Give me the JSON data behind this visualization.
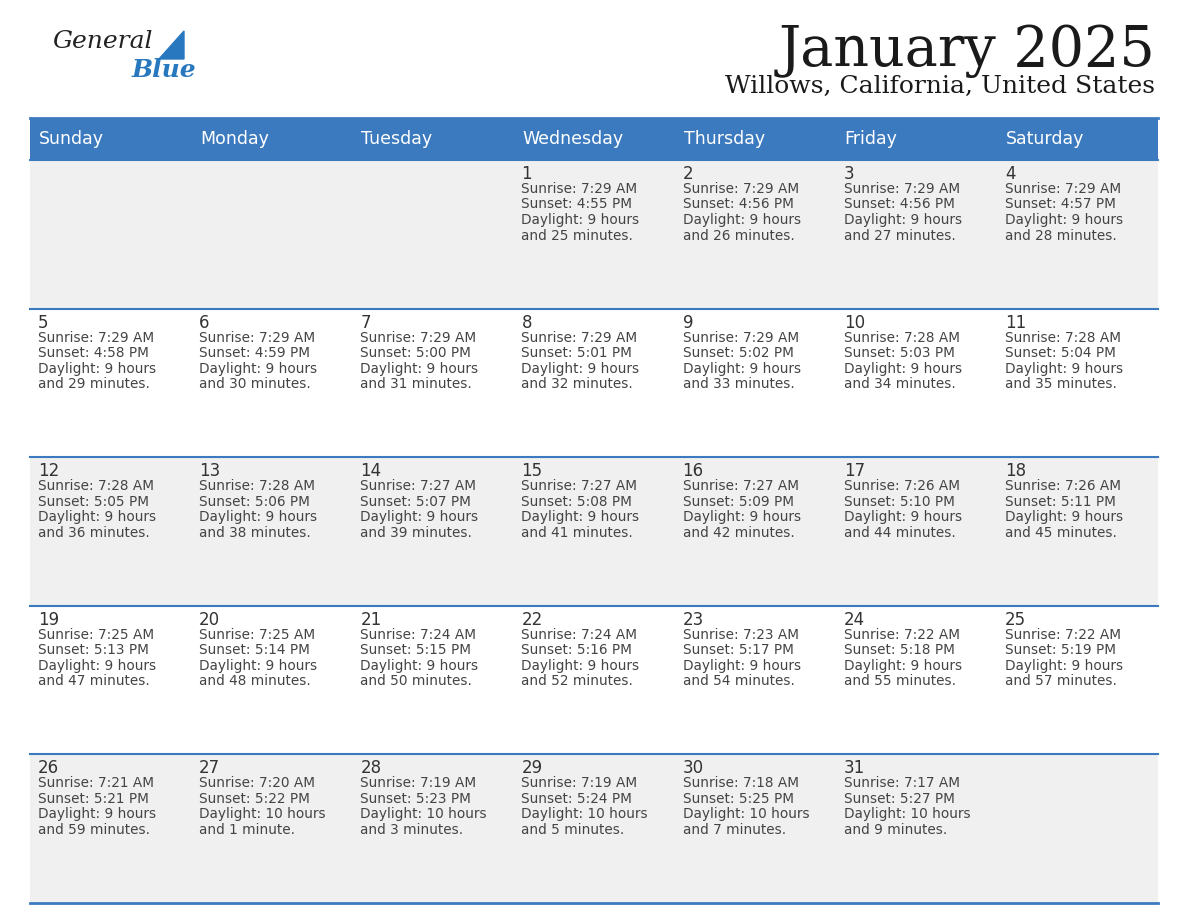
{
  "title": "January 2025",
  "subtitle": "Willows, California, United States",
  "days_of_week": [
    "Sunday",
    "Monday",
    "Tuesday",
    "Wednesday",
    "Thursday",
    "Friday",
    "Saturday"
  ],
  "header_bg": "#3c7abf",
  "header_text": "#ffffff",
  "row_bg_odd": "#f0f0f0",
  "row_bg_even": "#ffffff",
  "separator_color": "#3c7abf",
  "cell_text_color": "#444444",
  "day_number_color": "#333333",
  "logo_color_general": "#222222",
  "logo_color_blue": "#2878c0",
  "logo_triangle_color": "#2878c0",
  "calendar_data": [
    [
      {
        "day": null,
        "sunrise": null,
        "sunset": null,
        "daylight": null
      },
      {
        "day": null,
        "sunrise": null,
        "sunset": null,
        "daylight": null
      },
      {
        "day": null,
        "sunrise": null,
        "sunset": null,
        "daylight": null
      },
      {
        "day": 1,
        "sunrise": "7:29 AM",
        "sunset": "4:55 PM",
        "daylight_line1": "Daylight: 9 hours",
        "daylight_line2": "and 25 minutes."
      },
      {
        "day": 2,
        "sunrise": "7:29 AM",
        "sunset": "4:56 PM",
        "daylight_line1": "Daylight: 9 hours",
        "daylight_line2": "and 26 minutes."
      },
      {
        "day": 3,
        "sunrise": "7:29 AM",
        "sunset": "4:56 PM",
        "daylight_line1": "Daylight: 9 hours",
        "daylight_line2": "and 27 minutes."
      },
      {
        "day": 4,
        "sunrise": "7:29 AM",
        "sunset": "4:57 PM",
        "daylight_line1": "Daylight: 9 hours",
        "daylight_line2": "and 28 minutes."
      }
    ],
    [
      {
        "day": 5,
        "sunrise": "7:29 AM",
        "sunset": "4:58 PM",
        "daylight_line1": "Daylight: 9 hours",
        "daylight_line2": "and 29 minutes."
      },
      {
        "day": 6,
        "sunrise": "7:29 AM",
        "sunset": "4:59 PM",
        "daylight_line1": "Daylight: 9 hours",
        "daylight_line2": "and 30 minutes."
      },
      {
        "day": 7,
        "sunrise": "7:29 AM",
        "sunset": "5:00 PM",
        "daylight_line1": "Daylight: 9 hours",
        "daylight_line2": "and 31 minutes."
      },
      {
        "day": 8,
        "sunrise": "7:29 AM",
        "sunset": "5:01 PM",
        "daylight_line1": "Daylight: 9 hours",
        "daylight_line2": "and 32 minutes."
      },
      {
        "day": 9,
        "sunrise": "7:29 AM",
        "sunset": "5:02 PM",
        "daylight_line1": "Daylight: 9 hours",
        "daylight_line2": "and 33 minutes."
      },
      {
        "day": 10,
        "sunrise": "7:28 AM",
        "sunset": "5:03 PM",
        "daylight_line1": "Daylight: 9 hours",
        "daylight_line2": "and 34 minutes."
      },
      {
        "day": 11,
        "sunrise": "7:28 AM",
        "sunset": "5:04 PM",
        "daylight_line1": "Daylight: 9 hours",
        "daylight_line2": "and 35 minutes."
      }
    ],
    [
      {
        "day": 12,
        "sunrise": "7:28 AM",
        "sunset": "5:05 PM",
        "daylight_line1": "Daylight: 9 hours",
        "daylight_line2": "and 36 minutes."
      },
      {
        "day": 13,
        "sunrise": "7:28 AM",
        "sunset": "5:06 PM",
        "daylight_line1": "Daylight: 9 hours",
        "daylight_line2": "and 38 minutes."
      },
      {
        "day": 14,
        "sunrise": "7:27 AM",
        "sunset": "5:07 PM",
        "daylight_line1": "Daylight: 9 hours",
        "daylight_line2": "and 39 minutes."
      },
      {
        "day": 15,
        "sunrise": "7:27 AM",
        "sunset": "5:08 PM",
        "daylight_line1": "Daylight: 9 hours",
        "daylight_line2": "and 41 minutes."
      },
      {
        "day": 16,
        "sunrise": "7:27 AM",
        "sunset": "5:09 PM",
        "daylight_line1": "Daylight: 9 hours",
        "daylight_line2": "and 42 minutes."
      },
      {
        "day": 17,
        "sunrise": "7:26 AM",
        "sunset": "5:10 PM",
        "daylight_line1": "Daylight: 9 hours",
        "daylight_line2": "and 44 minutes."
      },
      {
        "day": 18,
        "sunrise": "7:26 AM",
        "sunset": "5:11 PM",
        "daylight_line1": "Daylight: 9 hours",
        "daylight_line2": "and 45 minutes."
      }
    ],
    [
      {
        "day": 19,
        "sunrise": "7:25 AM",
        "sunset": "5:13 PM",
        "daylight_line1": "Daylight: 9 hours",
        "daylight_line2": "and 47 minutes."
      },
      {
        "day": 20,
        "sunrise": "7:25 AM",
        "sunset": "5:14 PM",
        "daylight_line1": "Daylight: 9 hours",
        "daylight_line2": "and 48 minutes."
      },
      {
        "day": 21,
        "sunrise": "7:24 AM",
        "sunset": "5:15 PM",
        "daylight_line1": "Daylight: 9 hours",
        "daylight_line2": "and 50 minutes."
      },
      {
        "day": 22,
        "sunrise": "7:24 AM",
        "sunset": "5:16 PM",
        "daylight_line1": "Daylight: 9 hours",
        "daylight_line2": "and 52 minutes."
      },
      {
        "day": 23,
        "sunrise": "7:23 AM",
        "sunset": "5:17 PM",
        "daylight_line1": "Daylight: 9 hours",
        "daylight_line2": "and 54 minutes."
      },
      {
        "day": 24,
        "sunrise": "7:22 AM",
        "sunset": "5:18 PM",
        "daylight_line1": "Daylight: 9 hours",
        "daylight_line2": "and 55 minutes."
      },
      {
        "day": 25,
        "sunrise": "7:22 AM",
        "sunset": "5:19 PM",
        "daylight_line1": "Daylight: 9 hours",
        "daylight_line2": "and 57 minutes."
      }
    ],
    [
      {
        "day": 26,
        "sunrise": "7:21 AM",
        "sunset": "5:21 PM",
        "daylight_line1": "Daylight: 9 hours",
        "daylight_line2": "and 59 minutes."
      },
      {
        "day": 27,
        "sunrise": "7:20 AM",
        "sunset": "5:22 PM",
        "daylight_line1": "Daylight: 10 hours",
        "daylight_line2": "and 1 minute."
      },
      {
        "day": 28,
        "sunrise": "7:19 AM",
        "sunset": "5:23 PM",
        "daylight_line1": "Daylight: 10 hours",
        "daylight_line2": "and 3 minutes."
      },
      {
        "day": 29,
        "sunrise": "7:19 AM",
        "sunset": "5:24 PM",
        "daylight_line1": "Daylight: 10 hours",
        "daylight_line2": "and 5 minutes."
      },
      {
        "day": 30,
        "sunrise": "7:18 AM",
        "sunset": "5:25 PM",
        "daylight_line1": "Daylight: 10 hours",
        "daylight_line2": "and 7 minutes."
      },
      {
        "day": 31,
        "sunrise": "7:17 AM",
        "sunset": "5:27 PM",
        "daylight_line1": "Daylight: 10 hours",
        "daylight_line2": "and 9 minutes."
      },
      {
        "day": null,
        "sunrise": null,
        "sunset": null,
        "daylight_line1": null,
        "daylight_line2": null
      }
    ]
  ]
}
